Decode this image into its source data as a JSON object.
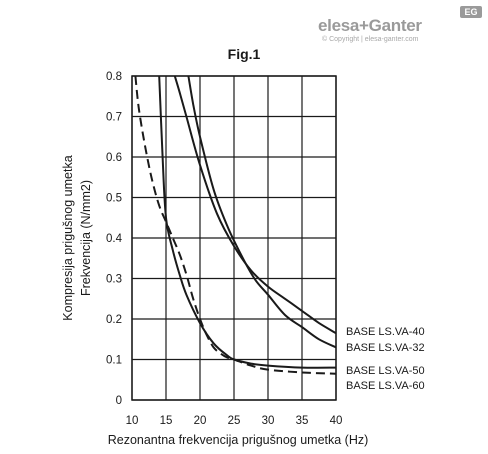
{
  "brand": {
    "logo_text": "elesa+Ganter",
    "badge": "EG",
    "subline": "© Copyright | elesa-ganter.com"
  },
  "chart_data": {
    "type": "line",
    "title": "Fig.1",
    "xlabel": "Rezonantna frekvencija prigušnog umetka (Hz)",
    "ylabel_lines": [
      "Kompresija prigušnog umetka",
      "Frekvencija (N/mm2)"
    ],
    "xlim": [
      10,
      40
    ],
    "ylim": [
      0,
      0.8
    ],
    "xticks": [
      10,
      15,
      20,
      25,
      30,
      35,
      40
    ],
    "yticks": [
      0,
      0.1,
      0.2,
      0.3,
      0.4,
      0.5,
      0.6,
      0.7,
      0.8
    ],
    "ytick_labels": [
      "0",
      "0.1",
      "0.2",
      "0.3",
      "0.4",
      "0.5",
      "0.6",
      "0.7",
      "0.8"
    ],
    "grid": true,
    "series": [
      {
        "name": "BASE LS.VA-40",
        "dash": false,
        "x": [
          16.3,
          17,
          18,
          20,
          22.5,
          25,
          27.5,
          30,
          32.5,
          35,
          37.5,
          40
        ],
        "y": [
          0.8,
          0.76,
          0.7,
          0.58,
          0.46,
          0.38,
          0.32,
          0.28,
          0.25,
          0.22,
          0.19,
          0.165
        ]
      },
      {
        "name": "BASE LS.VA-32",
        "dash": false,
        "x": [
          18.3,
          19,
          20,
          22,
          24,
          26,
          28,
          30,
          32.5,
          35,
          37.5,
          40
        ],
        "y": [
          0.8,
          0.73,
          0.65,
          0.52,
          0.43,
          0.36,
          0.3,
          0.26,
          0.21,
          0.18,
          0.15,
          0.13
        ]
      },
      {
        "name": "BASE LS.VA-50",
        "dash": false,
        "x": [
          14,
          14.5,
          15,
          16,
          17,
          18,
          20,
          22,
          24,
          25,
          27.5,
          30,
          35,
          40
        ],
        "y": [
          0.8,
          0.6,
          0.45,
          0.37,
          0.31,
          0.26,
          0.19,
          0.14,
          0.11,
          0.1,
          0.09,
          0.085,
          0.08,
          0.08
        ]
      },
      {
        "name": "BASE LS.VA-60",
        "dash": true,
        "x": [
          10.5,
          11,
          12,
          13,
          14,
          15,
          16,
          17,
          18,
          19,
          20,
          21,
          22,
          23,
          24,
          25,
          27.5,
          30,
          35,
          40
        ],
        "y": [
          0.8,
          0.72,
          0.62,
          0.54,
          0.48,
          0.44,
          0.4,
          0.36,
          0.31,
          0.25,
          0.2,
          0.16,
          0.13,
          0.115,
          0.105,
          0.1,
          0.085,
          0.075,
          0.068,
          0.065
        ]
      }
    ]
  }
}
